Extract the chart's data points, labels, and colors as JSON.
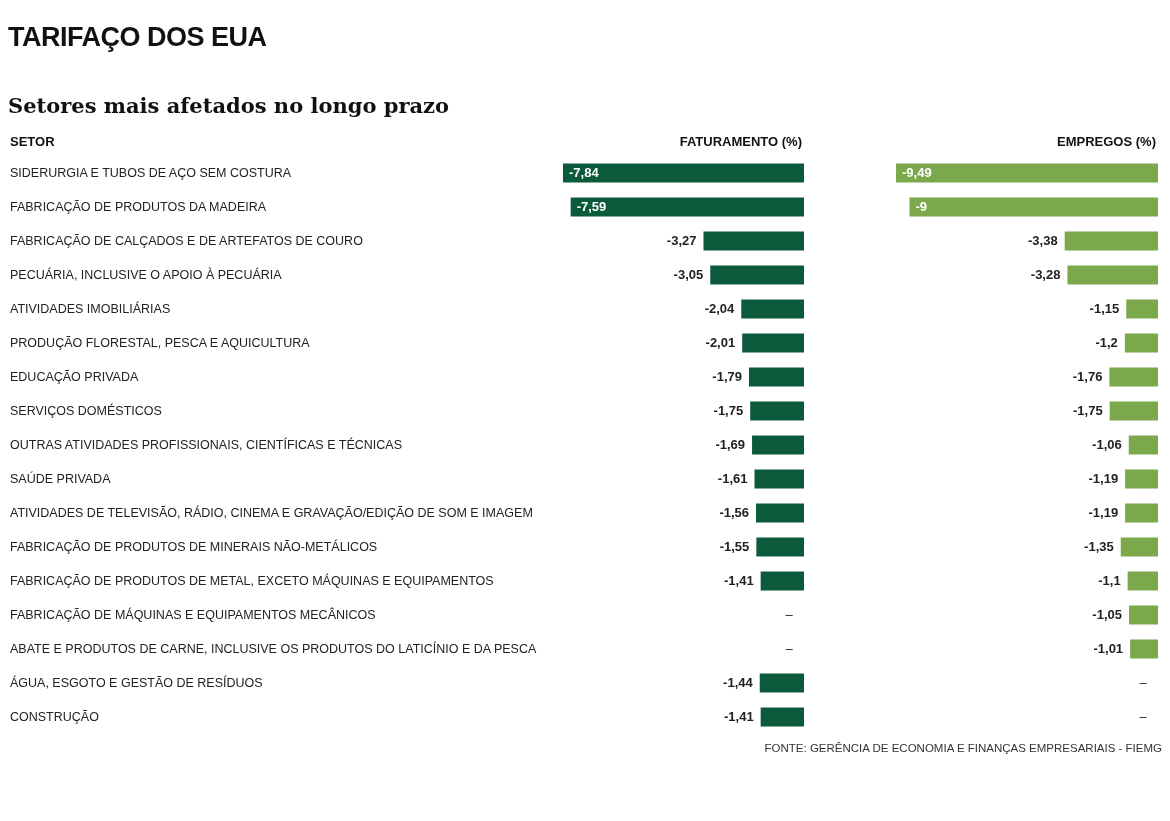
{
  "chart_data": [
    {
      "type": "bar",
      "orientation": "horizontal",
      "title": "TARIFAÇO DOS EUA",
      "subtitle": "Setores mais afetados no longo prazo",
      "ylabel": "SETOR",
      "xlabel": "FATURAMENTO (%)",
      "tick_labels": "y",
      "color": "#0b5a3c",
      "categories": [
        "SIDERURGIA E TUBOS DE AÇO SEM COSTURA",
        "FABRICAÇÃO DE PRODUTOS DA MADEIRA",
        "FABRICAÇÃO DE CALÇADOS E DE ARTEFATOS DE COURO",
        "PECUÁRIA, INCLUSIVE O APOIO À PECUÁRIA",
        "ATIVIDADES IMOBILIÁRIAS",
        "PRODUÇÃO FLORESTAL, PESCA E AQUICULTURA",
        "EDUCAÇÃO PRIVADA",
        "SERVIÇOS DOMÉSTICOS",
        "OUTRAS ATIVIDADES PROFISSIONAIS, CIENTÍFICAS E TÉCNICAS",
        "SAÚDE PRIVADA",
        "ATIVIDADES DE TELEVISÃO, RÁDIO, CINEMA E GRAVAÇÃO/EDIÇÃO DE SOM E IMAGEM",
        "FABRICAÇÃO DE PRODUTOS DE MINERAIS NÃO-METÁLICOS",
        "FABRICAÇÃO DE PRODUTOS DE METAL, EXCETO MÁQUINAS E EQUIPAMENTOS",
        "FABRICAÇÃO DE MÁQUINAS E EQUIPAMENTOS MECÂNICOS",
        "ABATE E PRODUTOS DE CARNE, INCLUSIVE OS PRODUTOS DO LATICÍNIO E DA PESCA",
        "ÁGUA, ESGOTO E GESTÃO DE RESÍDUOS",
        "CONSTRUÇÃO"
      ],
      "values": [
        -7.84,
        -7.59,
        -3.27,
        -3.05,
        -2.04,
        -2.01,
        -1.79,
        -1.75,
        -1.69,
        -1.61,
        -1.56,
        -1.55,
        -1.41,
        null,
        null,
        -1.44,
        -1.41
      ],
      "value_labels": [
        "-7,84",
        "-7,59",
        "-3,27",
        "-3,05",
        "-2,04",
        "-2,01",
        "-1,79",
        "-1,75",
        "-1,69",
        "-1,61",
        "-1,56",
        "-1,55",
        "-1,41",
        "–",
        "–",
        "-1,44",
        "-1,41"
      ],
      "annotations": [
        "FONTE: GERÊNCIA DE ECONOMIA E FINANÇAS EMPRESARIAIS - FIEMG"
      ]
    },
    {
      "type": "bar",
      "orientation": "horizontal",
      "xlabel": "EMPREGOS (%)",
      "tick_labels": false,
      "color": "#7aa84a",
      "categories": [
        null,
        null,
        null,
        null,
        null,
        null,
        null,
        null,
        null,
        null,
        null,
        null,
        null,
        null,
        null,
        null,
        null
      ],
      "values": [
        -9.49,
        -9,
        -3.38,
        -3.28,
        -1.15,
        -1.2,
        -1.76,
        -1.75,
        -1.06,
        -1.19,
        -1.19,
        -1.35,
        -1.1,
        -1.05,
        -1.01,
        null,
        null
      ],
      "value_labels": [
        "-9,49",
        "-9",
        "-3,38",
        "-3,28",
        "-1,15",
        "-1,2",
        "-1,76",
        "-1,75",
        "-1,06",
        "-1,19",
        "-1,19",
        "-1,35",
        "-1,1",
        "-1,05",
        "-1,01",
        "–",
        "–"
      ]
    }
  ]
}
